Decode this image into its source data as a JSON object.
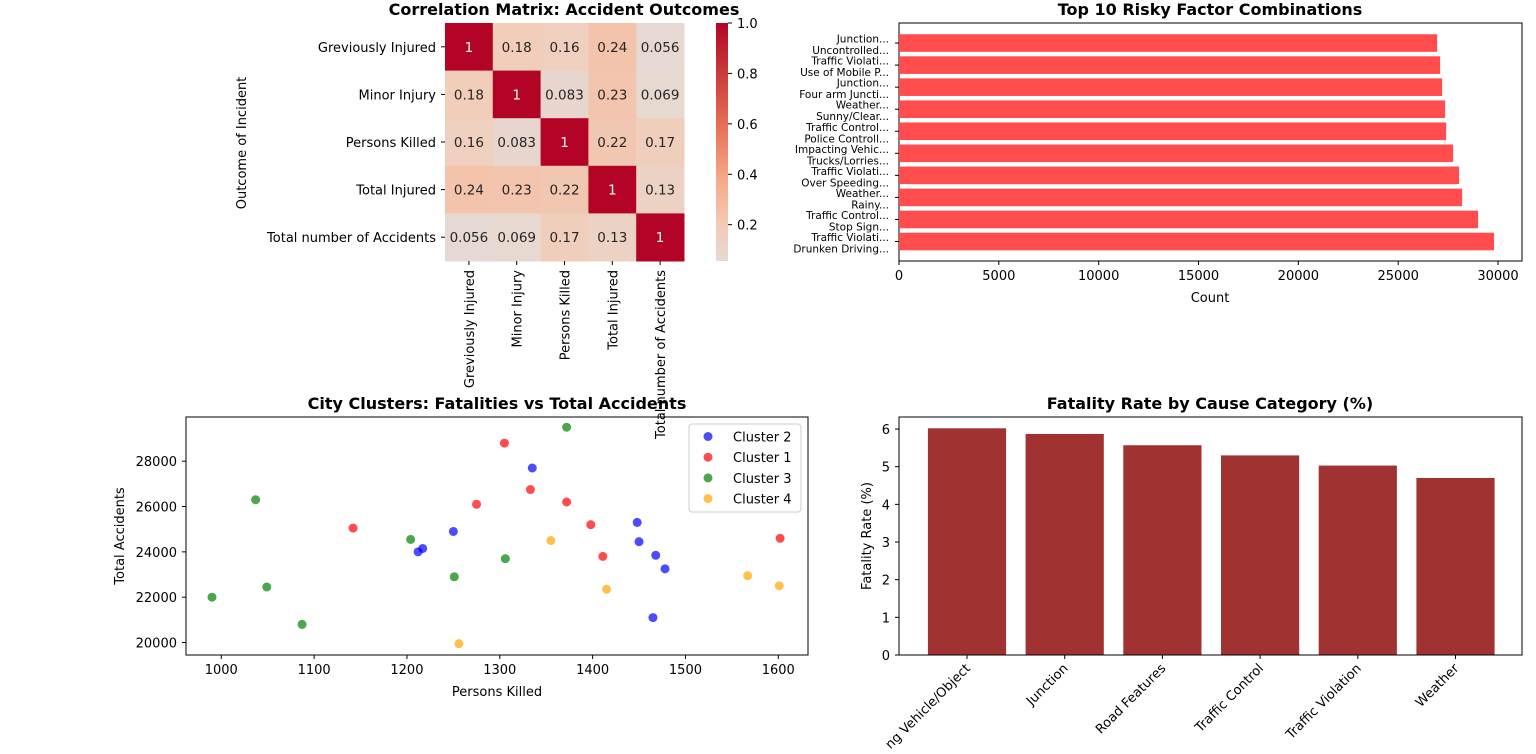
{
  "colors": {
    "heat_high": "#b40426",
    "heat_low": "#e6d9d3",
    "risky_bar": "#ff4d4d",
    "fatality_bar": "#a03232",
    "cluster_colors": [
      "#0000ff",
      "#ff0000",
      "#008000",
      "#ffa500"
    ]
  },
  "chart_data": [
    {
      "type": "heatmap",
      "title": "Correlation Matrix: Accident Outcomes",
      "ylabel": "Outcome of Incident",
      "row_labels": [
        "Greviously Injured",
        "Minor Injury",
        "Persons Killed",
        "Total Injured",
        "Total number of Accidents"
      ],
      "col_labels": [
        "Greviously Injured",
        "Minor Injury",
        "Persons Killed",
        "Total Injured",
        "Total number of Accidents"
      ],
      "values": [
        [
          1,
          0.18,
          0.16,
          0.24,
          0.056
        ],
        [
          0.18,
          1,
          0.083,
          0.23,
          0.069
        ],
        [
          0.16,
          0.083,
          1,
          0.22,
          0.17
        ],
        [
          0.24,
          0.23,
          0.22,
          1,
          0.13
        ],
        [
          0.056,
          0.069,
          0.17,
          0.13,
          1
        ]
      ],
      "value_labels": [
        [
          "1",
          "0.18",
          "0.16",
          "0.24",
          "0.056"
        ],
        [
          "0.18",
          "1",
          "0.083",
          "0.23",
          "0.069"
        ],
        [
          "0.16",
          "0.083",
          "1",
          "0.22",
          "0.17"
        ],
        [
          "0.24",
          "0.23",
          "0.22",
          "1",
          "0.13"
        ],
        [
          "0.056",
          "0.069",
          "0.17",
          "0.13",
          "1"
        ]
      ],
      "colorbar_ticks": [
        0.2,
        0.4,
        0.6,
        0.8,
        1.0
      ],
      "colorbar_tick_labels": [
        "0.2",
        "0.4",
        "0.6",
        "0.8",
        "1.0"
      ],
      "colorbar_range": [
        0.056,
        1.0
      ]
    },
    {
      "type": "bar",
      "orientation": "horizontal",
      "title": "Top 10 Risky Factor Combinations",
      "xlabel": "Count",
      "categories": [
        [
          "Traffic Violati...",
          "Drunken Driving..."
        ],
        [
          "Traffic Control...",
          "Stop Sign..."
        ],
        [
          "Weather...",
          "Rainy..."
        ],
        [
          "Traffic Violati...",
          "Over Speeding..."
        ],
        [
          "Impacting Vehic...",
          "Trucks/Lorries..."
        ],
        [
          "Traffic Control...",
          "Police Controll..."
        ],
        [
          "Weather...",
          "Sunny/Clear..."
        ],
        [
          "Junction...",
          "Four arm Juncti..."
        ],
        [
          "Traffic Violati...",
          "Use of Mobile P..."
        ],
        [
          "Junction...",
          "Uncontrolled..."
        ]
      ],
      "values": [
        29800,
        29000,
        28200,
        28050,
        27750,
        27400,
        27350,
        27200,
        27100,
        26950
      ],
      "xlim": [
        0,
        31200
      ],
      "xticks": [
        0,
        5000,
        10000,
        15000,
        20000,
        25000,
        30000
      ],
      "xtick_labels": [
        "0",
        "5000",
        "10000",
        "15000",
        "20000",
        "25000",
        "30000"
      ]
    },
    {
      "type": "scatter",
      "title": "City Clusters: Fatalities vs Total Accidents",
      "xlabel": "Persons Killed",
      "ylabel": "Total Accidents",
      "xlim": [
        962,
        1632
      ],
      "ylim": [
        19450,
        29950
      ],
      "xticks": [
        1000,
        1100,
        1200,
        1300,
        1400,
        1500,
        1600
      ],
      "xtick_labels": [
        "1000",
        "1100",
        "1200",
        "1300",
        "1400",
        "1500",
        "1600"
      ],
      "yticks": [
        20000,
        22000,
        24000,
        26000,
        28000
      ],
      "ytick_labels": [
        "20000",
        "22000",
        "24000",
        "26000",
        "28000"
      ],
      "legend_position": "top-right",
      "series": [
        {
          "name": "Cluster 2",
          "points": [
            [
              1335,
              27700
            ],
            [
              1250,
              24900
            ],
            [
              1217,
              24150
            ],
            [
              1212,
              24000
            ],
            [
              1448,
              25300
            ],
            [
              1450,
              24450
            ],
            [
              1468,
              23850
            ],
            [
              1478,
              23250
            ],
            [
              1465,
              21100
            ]
          ]
        },
        {
          "name": "Cluster 1",
          "points": [
            [
              1305,
              28800
            ],
            [
              1333,
              26750
            ],
            [
              1372,
              26200
            ],
            [
              1275,
              26100
            ],
            [
              1142,
              25050
            ],
            [
              1398,
              25200
            ],
            [
              1411,
              23800
            ],
            [
              1602,
              24600
            ]
          ]
        },
        {
          "name": "Cluster 3",
          "points": [
            [
              1372,
              29500
            ],
            [
              1037,
              26300
            ],
            [
              1204,
              24550
            ],
            [
              1306,
              23700
            ],
            [
              1251,
              22900
            ],
            [
              1049,
              22450
            ],
            [
              990,
              22000
            ],
            [
              1087,
              20800
            ]
          ]
        },
        {
          "name": "Cluster 4",
          "points": [
            [
              1355,
              24500
            ],
            [
              1567,
              22950
            ],
            [
              1601,
              22500
            ],
            [
              1415,
              22350
            ],
            [
              1256,
              19950
            ]
          ]
        }
      ]
    },
    {
      "type": "bar",
      "title": "Fatality Rate by Cause Category (%)",
      "ylabel": "Fatality Rate (%)",
      "categories": [
        "Impacting Vehicle/Object",
        "Junction",
        "Road Features",
        "Traffic Control",
        "Traffic Violation",
        "Weather"
      ],
      "category_labels_visible": [
        "ng Vehicle/Object",
        "Junction",
        "Road Features",
        "Traffic Control",
        "Traffic Violation",
        "Weather"
      ],
      "values": [
        6.02,
        5.87,
        5.57,
        5.3,
        5.03,
        4.7
      ],
      "ylim": [
        0,
        6.32
      ],
      "yticks": [
        0,
        1,
        2,
        3,
        4,
        5,
        6
      ],
      "ytick_labels": [
        "0",
        "1",
        "2",
        "3",
        "4",
        "5",
        "6"
      ]
    }
  ]
}
